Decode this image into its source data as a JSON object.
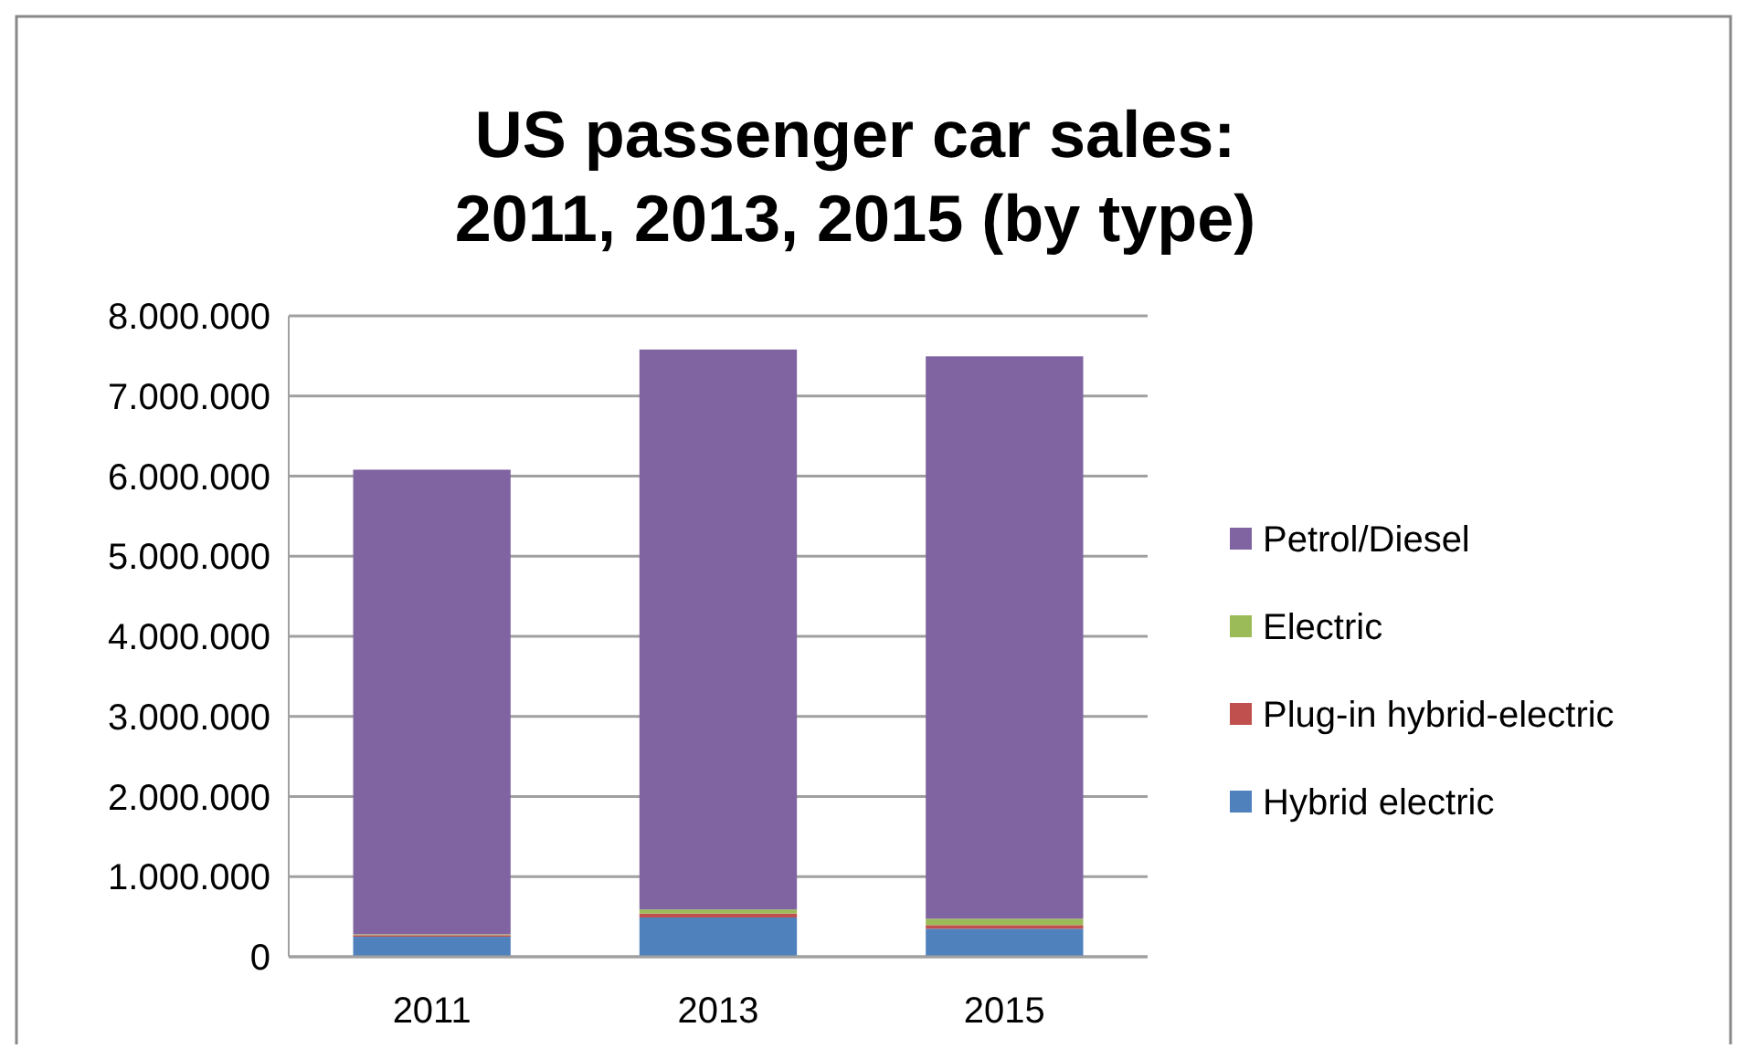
{
  "chart_data": {
    "type": "bar",
    "stacked": true,
    "title": "US passenger car sales:\n2011, 2013, 2015 (by type)",
    "categories": [
      "2011",
      "2013",
      "2015"
    ],
    "series": [
      {
        "name": "Hybrid electric",
        "color": "#4f81bd",
        "values": [
          250000,
          490000,
          350000
        ]
      },
      {
        "name": "Plug-in hybrid-electric",
        "color": "#c0504d",
        "values": [
          20000,
          50000,
          45000
        ]
      },
      {
        "name": "Electric",
        "color": "#9bbb59",
        "values": [
          10000,
          50000,
          80000
        ]
      },
      {
        "name": "Petrol/Diesel",
        "color": "#8064a2",
        "values": [
          5800000,
          6990000,
          7020000
        ]
      }
    ],
    "ylim": [
      0,
      8000000
    ],
    "yticks": [
      {
        "value": 0,
        "label": "0"
      },
      {
        "value": 1000000,
        "label": "1.000.000"
      },
      {
        "value": 2000000,
        "label": "2.000.000"
      },
      {
        "value": 3000000,
        "label": "3.000.000"
      },
      {
        "value": 4000000,
        "label": "4.000.000"
      },
      {
        "value": 5000000,
        "label": "5.000.000"
      },
      {
        "value": 6000000,
        "label": "6.000.000"
      },
      {
        "value": 7000000,
        "label": "7.000.000"
      },
      {
        "value": 8000000,
        "label": "8.000.000"
      }
    ],
    "grid": "y",
    "legend": "right"
  }
}
